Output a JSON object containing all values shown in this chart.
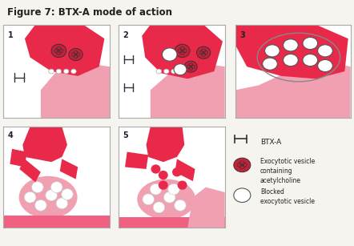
{
  "title": "Figure 7: BTX-A mode of action",
  "background_color": "#f5f4ef",
  "border_color": "#888888",
  "pink_dark": "#e8294a",
  "pink_light": "#f0a0b0",
  "pink_mid": "#f06080",
  "panel_bg": "#ffffff",
  "legend_items": [
    {
      "symbol": "BTX-A",
      "text": "BTX-A"
    },
    {
      "symbol": "vesicle_filled",
      "text": "Exocytotic vesicle\ncontaining\nacetylcholine"
    },
    {
      "symbol": "vesicle_empty",
      "text": "Blocked\nexocytotic vesicle"
    }
  ],
  "panel_numbers": [
    "1",
    "2",
    "3",
    "4",
    "5"
  ]
}
